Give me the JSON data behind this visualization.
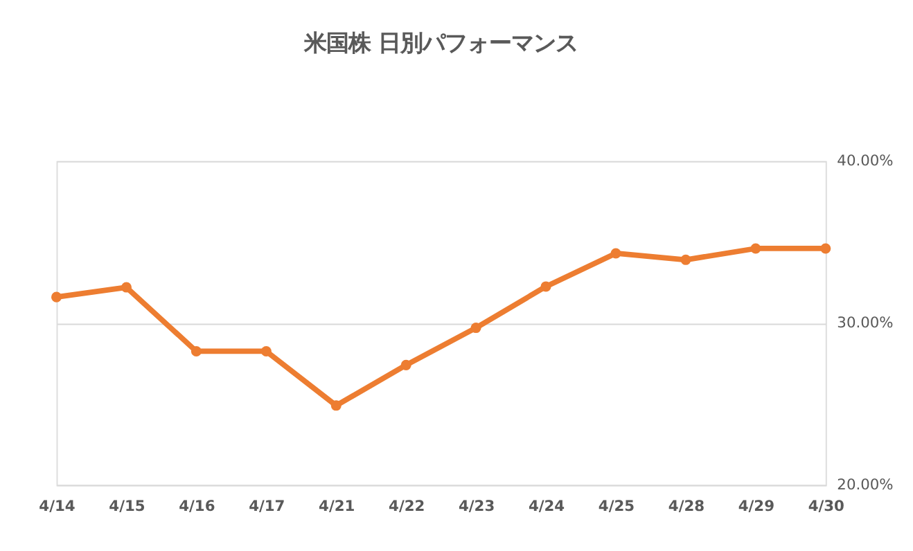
{
  "chart_data": {
    "type": "line",
    "title": "米国株 日別パフォーマンス",
    "categories": [
      "4/14",
      "4/15",
      "4/16",
      "4/17",
      "4/21",
      "4/22",
      "4/23",
      "4/24",
      "4/25",
      "4/28",
      "4/29",
      "4/30"
    ],
    "series": [
      {
        "color": "#ed7d31",
        "values": [
          31.6,
          32.2,
          28.25,
          28.25,
          24.9,
          27.4,
          29.7,
          32.25,
          34.3,
          33.9,
          34.6,
          34.6
        ]
      }
    ],
    "ylim": [
      20,
      40
    ],
    "yticks": [
      {
        "value": 20,
        "label": "20.00%"
      },
      {
        "value": 30,
        "label": "30.00%"
      },
      {
        "value": 40,
        "label": "40.00%"
      }
    ],
    "grid": "y",
    "marker": "circle",
    "line_style": "solid"
  }
}
